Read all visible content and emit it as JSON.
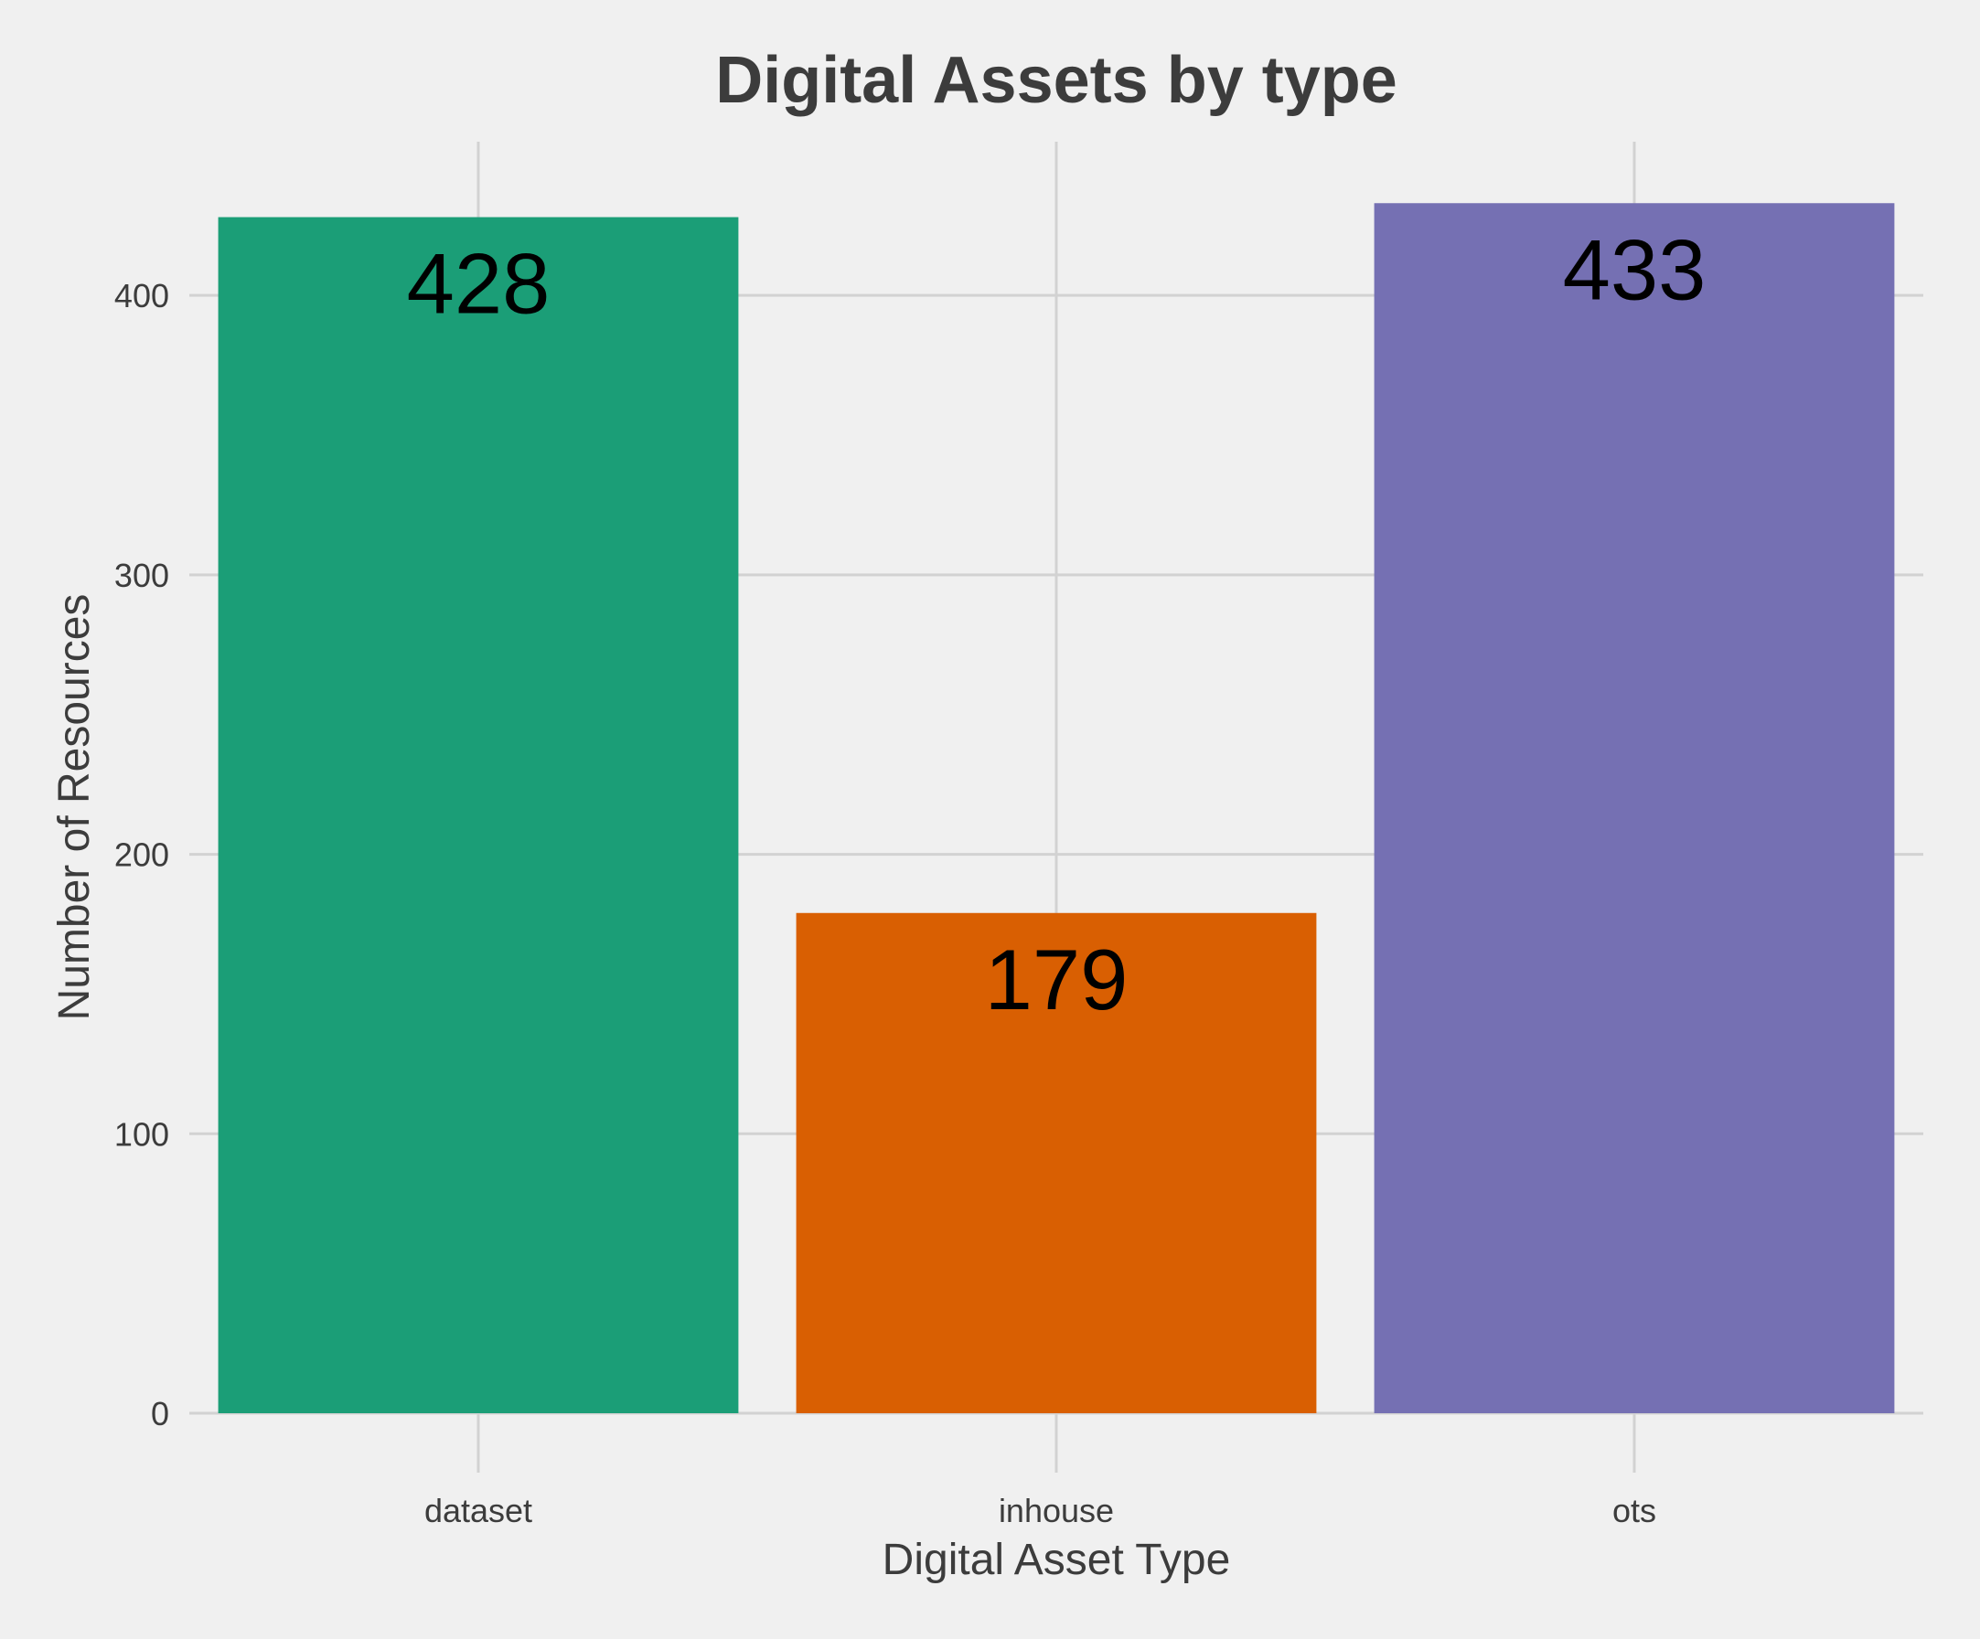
{
  "chart_data": {
    "type": "bar",
    "title": "Digital Assets by type",
    "xlabel": "Digital Asset Type",
    "ylabel": "Number of Resources",
    "categories": [
      "dataset",
      "inhouse",
      "ots"
    ],
    "values": [
      428,
      179,
      433
    ],
    "data_labels": [
      "428",
      "179",
      "433"
    ],
    "colors": [
      "#1b9e77",
      "#d95f02",
      "#7570b3"
    ],
    "ylim": [
      0,
      455
    ],
    "yticks": [
      0,
      100,
      200,
      300,
      400
    ],
    "ytick_labels": [
      "0",
      "100",
      "200",
      "300",
      "400"
    ],
    "grid": true,
    "legend": "none"
  },
  "style": {
    "background": "#f0f0f0",
    "grid_color": "#d2d2d2",
    "text_color": "#3c3c3c",
    "label_color": "#000000"
  }
}
